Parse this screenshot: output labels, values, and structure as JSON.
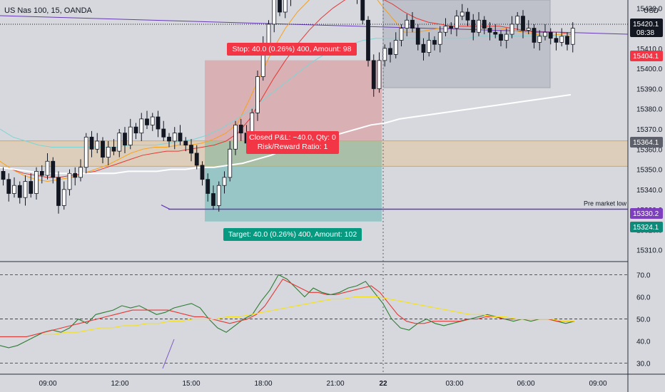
{
  "header": {
    "symbol_label": "US Nas 100, 15, OANDA"
  },
  "colors": {
    "background": "#d6d8de",
    "candle_up": "#ffffff",
    "candle_down": "#131722",
    "ma_fast": "#f7a21b",
    "ma_mid": "#e53935",
    "ma_teal": "#7fd4d4",
    "ma_slow": "#ffffff",
    "stop_zone": "#e06666",
    "target_zone": "#26a69a",
    "stop_label_bg": "#f23645",
    "target_label_bg": "#089981",
    "zone_orange": "#f7a21b",
    "premarket_line": "#673ab7",
    "session_box": "#b7bac4",
    "rsi_green": "#2e7d32",
    "rsi_red": "#e53935",
    "rsi_yellow": "#f5e11b",
    "price_tag_red": "#f23645",
    "price_tag_gray": "#5d606b",
    "price_tag_purple": "#7e3fbf",
    "price_tag_teal": "#0d8a7a"
  },
  "chart_data": [
    {
      "type": "candlestick",
      "title": "US Nas 100, 15, OANDA",
      "x_ticks": [
        "09:00",
        "12:00",
        "15:00",
        "18:00",
        "21:00",
        "22",
        "03:00",
        "06:00",
        "09:00"
      ],
      "y_ticks": [
        15310,
        15320,
        15330,
        15340,
        15350,
        15360,
        15370,
        15380,
        15390,
        15400,
        15410,
        15420,
        15430
      ],
      "ylim": [
        15306,
        15434
      ],
      "y_axis_unit": "USD",
      "candles_close": [
        15345,
        15338,
        15342,
        15336,
        15344,
        15338,
        15349,
        15347,
        15354,
        15346,
        15332,
        15340,
        15348,
        15346,
        15351,
        15366,
        15360,
        15364,
        15356,
        15361,
        15359,
        15368,
        15362,
        15371,
        15368,
        15375,
        15372,
        15376,
        15370,
        15366,
        15364,
        15368,
        15364,
        15362,
        15358,
        15352,
        15345,
        15338,
        15332,
        15342,
        15346,
        15360,
        15372,
        15368,
        15363,
        15378,
        15396,
        15412,
        15422,
        15436,
        15428,
        15435,
        15440,
        15446,
        15438,
        15443,
        15447,
        15444,
        15451,
        15448,
        15445,
        15450,
        15444,
        15448,
        15436,
        15424,
        15404,
        15390,
        15404,
        15410,
        15407,
        15414,
        15420,
        15424,
        15420,
        15412,
        15408,
        15414,
        15412,
        15418,
        15421,
        15420,
        15426,
        15428,
        15424,
        15418,
        15424,
        15420,
        15418,
        15417,
        15414,
        15417,
        15422,
        15426,
        15419,
        15420,
        15413,
        15416,
        15418,
        15415,
        15413,
        15416,
        15412,
        15420
      ],
      "moving_averages": [
        {
          "name": "fast",
          "color": "#f7a21b",
          "values": [
            15354,
            15350,
            15347,
            15345,
            15344,
            15345,
            15346,
            15348,
            15350,
            15352,
            15355,
            15358,
            15360,
            15361,
            15361,
            15362,
            15362,
            15363,
            15365,
            15368,
            15373,
            15385,
            15398,
            15410,
            15420,
            15428,
            15434,
            15440,
            15443,
            15444,
            15443,
            15440,
            15432,
            15425,
            15418,
            15418,
            15419,
            15420,
            15420,
            15420,
            15420,
            15420,
            15420,
            15419,
            15418,
            15417,
            15416,
            15417,
            15416
          ]
        },
        {
          "name": "mid",
          "color": "#e53935",
          "values": [
            15351,
            15350,
            15348,
            15347,
            15346,
            15346,
            15347,
            15348,
            15349,
            15351,
            15353,
            15355,
            15357,
            15358,
            15359,
            15359,
            15360,
            15361,
            15362,
            15364,
            15368,
            15375,
            15385,
            15395,
            15404,
            15412,
            15419,
            15425,
            15430,
            15434,
            15436,
            15436,
            15435,
            15432,
            15428,
            15425,
            15423,
            15422,
            15421,
            15421,
            15421,
            15421,
            15421,
            15420,
            15419,
            15418,
            15418,
            15418,
            15417
          ]
        },
        {
          "name": "teal",
          "color": "#7fd4d4",
          "values": [
            15370,
            15366,
            15364,
            15362,
            15361,
            15361,
            15361,
            15361,
            15361,
            15361,
            15362,
            15362,
            15362,
            15363,
            15364,
            15365,
            15367,
            15370,
            15374,
            15378,
            15383,
            15388,
            15393,
            15398,
            15403,
            15407,
            15410,
            15412,
            15414,
            15415,
            15415,
            15415,
            15415,
            15415,
            15415,
            15415,
            15415,
            15416,
            15416,
            15416,
            15416,
            15416,
            15416,
            15416,
            15416
          ]
        },
        {
          "name": "slow",
          "color": "#ffffff",
          "values": [
            15351,
            15350,
            15349,
            15348,
            15348,
            15348,
            15348,
            15348,
            15348,
            15349,
            15349,
            15349,
            15350,
            15350,
            15351,
            15351,
            15352,
            15353,
            15355,
            15357,
            15360,
            15362,
            15364,
            15366,
            15368,
            15370,
            15372,
            15373,
            15375,
            15376,
            15377,
            15378,
            15379,
            15380,
            15381,
            15382,
            15383,
            15384,
            15385,
            15386,
            15387
          ]
        }
      ],
      "horizontal_lines": [
        {
          "value": 15420.5,
          "color": "#673ab7"
        },
        {
          "value": 15364.1,
          "color": "#f7a21b"
        },
        {
          "value": 15351.5,
          "color": "#f7a21b"
        },
        {
          "value": 15330.2,
          "color": "#673ab7",
          "label": "Pre market low"
        }
      ],
      "position": {
        "entry": 15364.1,
        "stop": 15404.1,
        "target": 15324.1,
        "stop_label": "Stop: 40.0 (0.26%) 400, Amount: 98",
        "target_label": "Target: 40.0 (0.26%) 400, Amount: 102",
        "pnl_label_line1": "Closed P&L: −40.0, Qty: 0",
        "pnl_label_line2": "Risk/Reward Ratio: 1"
      },
      "price_tags": [
        {
          "value": "15420.1",
          "sub": "08:38",
          "color": "#131722"
        },
        {
          "value": "15404.1",
          "color": "#f23645"
        },
        {
          "value": "15364.1",
          "color": "#5d606b"
        },
        {
          "value": "15330.2",
          "color": "#7e3fbf"
        },
        {
          "value": "15324.1",
          "color": "#0d8a7a"
        }
      ]
    },
    {
      "type": "line",
      "title": "RSI",
      "y_ticks": [
        30,
        40,
        50,
        60,
        70
      ],
      "ylim": [
        26,
        75
      ],
      "dashed_levels": [
        70,
        50,
        30
      ],
      "series": [
        {
          "color": "#2e7d32",
          "values": [
            38,
            37,
            38,
            40,
            42,
            44,
            45,
            44,
            46,
            50,
            48,
            52,
            53,
            54,
            56,
            55,
            56,
            54,
            52,
            53,
            55,
            56,
            57,
            55,
            50,
            46,
            44,
            47,
            50,
            52,
            58,
            63,
            70,
            68,
            64,
            60,
            64,
            62,
            61,
            62,
            64,
            65,
            67,
            62,
            57,
            50,
            46,
            45,
            48,
            50,
            48,
            47,
            48,
            49,
            50,
            51,
            52,
            51,
            50,
            49,
            50,
            49,
            50,
            50,
            49,
            48,
            49
          ]
        },
        {
          "color": "#e53935",
          "values": [
            42,
            42,
            42,
            42,
            43,
            44,
            45,
            46,
            47,
            48,
            49,
            50,
            51,
            52,
            53,
            54,
            54,
            54,
            54,
            54,
            53,
            52,
            51,
            51,
            50,
            49,
            48,
            49,
            50,
            52,
            56,
            62,
            68,
            66,
            64,
            62,
            62,
            61,
            61,
            62,
            63,
            64,
            65,
            62,
            57,
            52,
            49,
            48,
            48,
            49,
            49,
            49,
            49,
            50,
            50,
            51,
            51,
            50,
            50,
            50,
            50,
            50,
            50,
            49,
            49,
            49
          ]
        },
        {
          "color": "#f5e11b",
          "values": [
            43,
            43,
            44,
            44,
            45,
            46,
            46,
            47,
            47,
            48,
            48,
            49,
            49,
            50,
            50,
            50,
            51,
            51,
            52,
            53,
            54,
            55,
            56,
            57,
            58,
            59,
            59,
            60,
            60,
            60,
            59,
            58,
            57,
            56,
            55,
            54,
            53,
            52,
            52,
            51,
            51,
            50,
            50,
            50,
            50,
            49,
            49
          ]
        }
      ]
    }
  ]
}
